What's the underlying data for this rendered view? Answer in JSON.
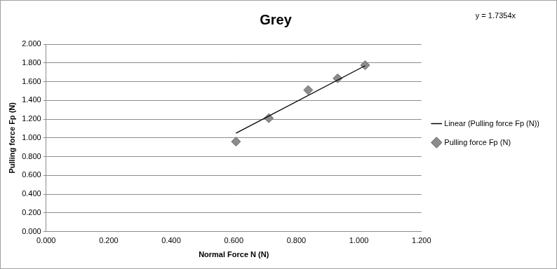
{
  "chart_data": {
    "type": "scatter",
    "title": "Grey",
    "x_label": "Normal Force N (N)",
    "y_label": "Pulling force Fp (N)",
    "annotations": [
      "y = 1.7354x"
    ],
    "series": [
      {
        "name": "Pulling force Fp (N)",
        "type": "scatter",
        "color": "#8c8c8c",
        "marker": "diamond",
        "x": [
          0.607,
          0.712,
          0.838,
          0.932,
          1.02
        ],
        "values": [
          0.96,
          1.21,
          1.51,
          1.635,
          1.775
        ]
      },
      {
        "name": "Linear (Pulling force Fp (N))",
        "type": "line",
        "color": "#000000",
        "line_style": "solid",
        "x": [
          0.607,
          1.02
        ],
        "values": [
          1.05,
          1.77
        ]
      }
    ],
    "xlim": [
      0,
      1.2
    ],
    "xticks": [
      {
        "value": 0,
        "label": "0.000"
      },
      {
        "value": 0.2,
        "label": "0.200"
      },
      {
        "value": 0.4,
        "label": "0.400"
      },
      {
        "value": 0.6,
        "label": "0.600"
      },
      {
        "value": 0.8,
        "label": "0.800"
      },
      {
        "value": 1.0,
        "label": "1.000"
      },
      {
        "value": 1.2,
        "label": "1.200"
      }
    ],
    "ylim": [
      0,
      2
    ],
    "yticks": [
      {
        "value": 0,
        "label": "0.000"
      },
      {
        "value": 0.2,
        "label": "0.200"
      },
      {
        "value": 0.4,
        "label": "0.400"
      },
      {
        "value": 0.6,
        "label": "0.600"
      },
      {
        "value": 0.8,
        "label": "0.800"
      },
      {
        "value": 1.0,
        "label": "1.000"
      },
      {
        "value": 1.2,
        "label": "1.200"
      },
      {
        "value": 1.4,
        "label": "1.400"
      },
      {
        "value": 1.6,
        "label": "1.600"
      },
      {
        "value": 1.8,
        "label": "1.800"
      },
      {
        "value": 2.0,
        "label": "2.000"
      }
    ],
    "grid": true,
    "legend": "right"
  }
}
